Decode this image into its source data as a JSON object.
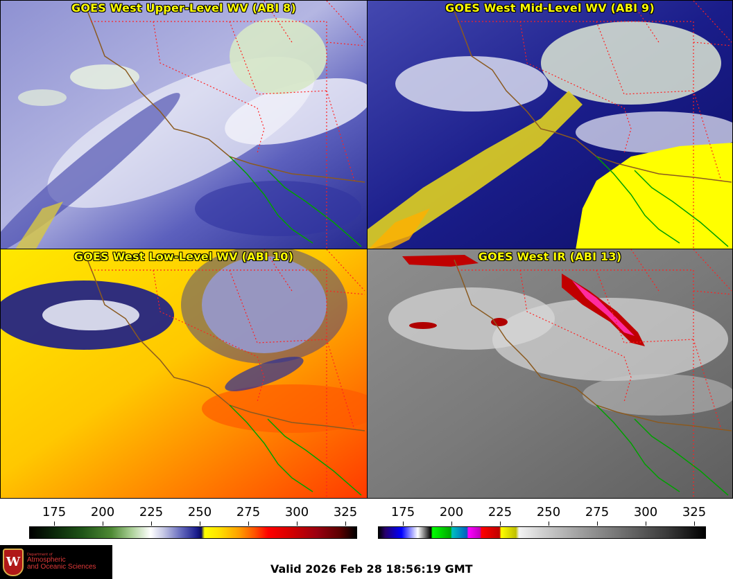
{
  "panels": [
    {
      "id": "upper",
      "title": "GOES West Upper-Level WV (ABI 8)"
    },
    {
      "id": "mid",
      "title": "GOES West Mid-Level WV (ABI 9)"
    },
    {
      "id": "low",
      "title": "GOES West Low-Level WV (ABI 10)"
    },
    {
      "id": "ir",
      "title": "GOES West IR (ABI 13)"
    }
  ],
  "colorbar_wv": {
    "ticks": [
      "175",
      "200",
      "225",
      "250",
      "275",
      "300",
      "325"
    ]
  },
  "colorbar_ir": {
    "ticks": [
      "175",
      "200",
      "225",
      "250",
      "275",
      "300",
      "325"
    ]
  },
  "logo": {
    "dept": "Department of",
    "line1": "Atmospheric",
    "line2": "and Oceanic Sciences",
    "crest": "W"
  },
  "valid": "Valid 2026 Feb 28 18:56:19 GMT",
  "colors": {
    "title": "#ffff00",
    "coast": "#00a000",
    "border": "#ff2020",
    "logo_text": "#e23a3a"
  }
}
